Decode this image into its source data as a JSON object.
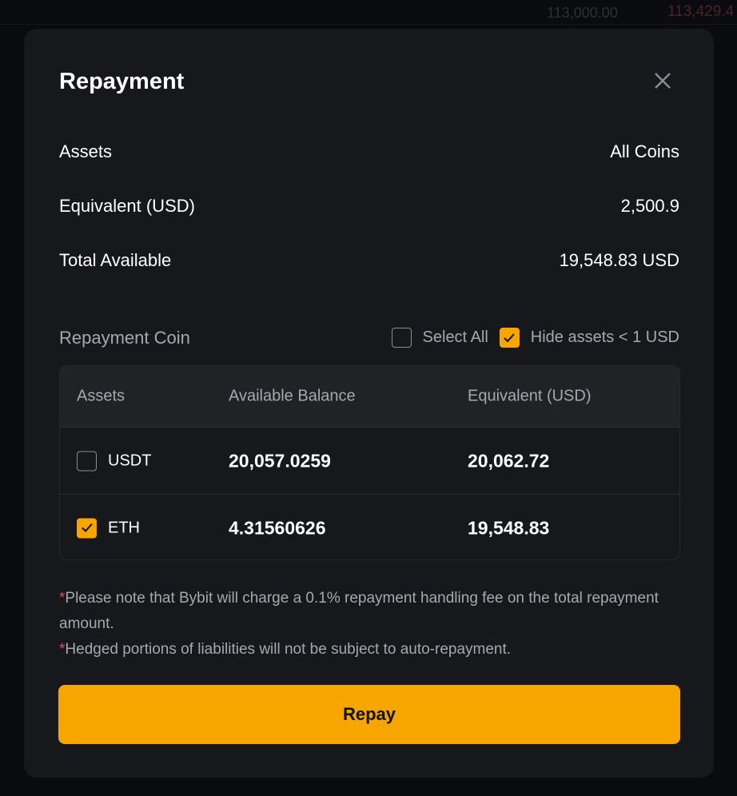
{
  "background": {
    "prices": [
      "113,000.00",
      "113,429.4"
    ]
  },
  "modal": {
    "title": "Repayment",
    "summary": [
      {
        "label": "Assets",
        "value": "All Coins"
      },
      {
        "label": "Equivalent (USD)",
        "value": "2,500.9"
      },
      {
        "label": "Total Available",
        "value": "19,548.83 USD"
      }
    ],
    "repayment_coin_label": "Repayment Coin",
    "select_all": {
      "label": "Select All",
      "checked": false
    },
    "hide_small": {
      "label": "Hide assets < 1 USD",
      "checked": true
    },
    "table": {
      "headers": [
        "Assets",
        "Available Balance",
        "Equivalent (USD)"
      ],
      "rows": [
        {
          "asset": "USDT",
          "balance": "20,057.0259",
          "equivalent": "20,062.72",
          "checked": false
        },
        {
          "asset": "ETH",
          "balance": "4.31560626",
          "equivalent": "19,548.83",
          "checked": true
        }
      ]
    },
    "notes": [
      {
        "mark": "*",
        "text": "Please note that Bybit will charge a 0.1% repayment handling fee on the total repayment amount."
      },
      {
        "mark": "*",
        "text": "Hedged portions of liabilities will not be subject to auto-repayment."
      }
    ],
    "repay_label": "Repay",
    "accent": "#f7a600"
  }
}
